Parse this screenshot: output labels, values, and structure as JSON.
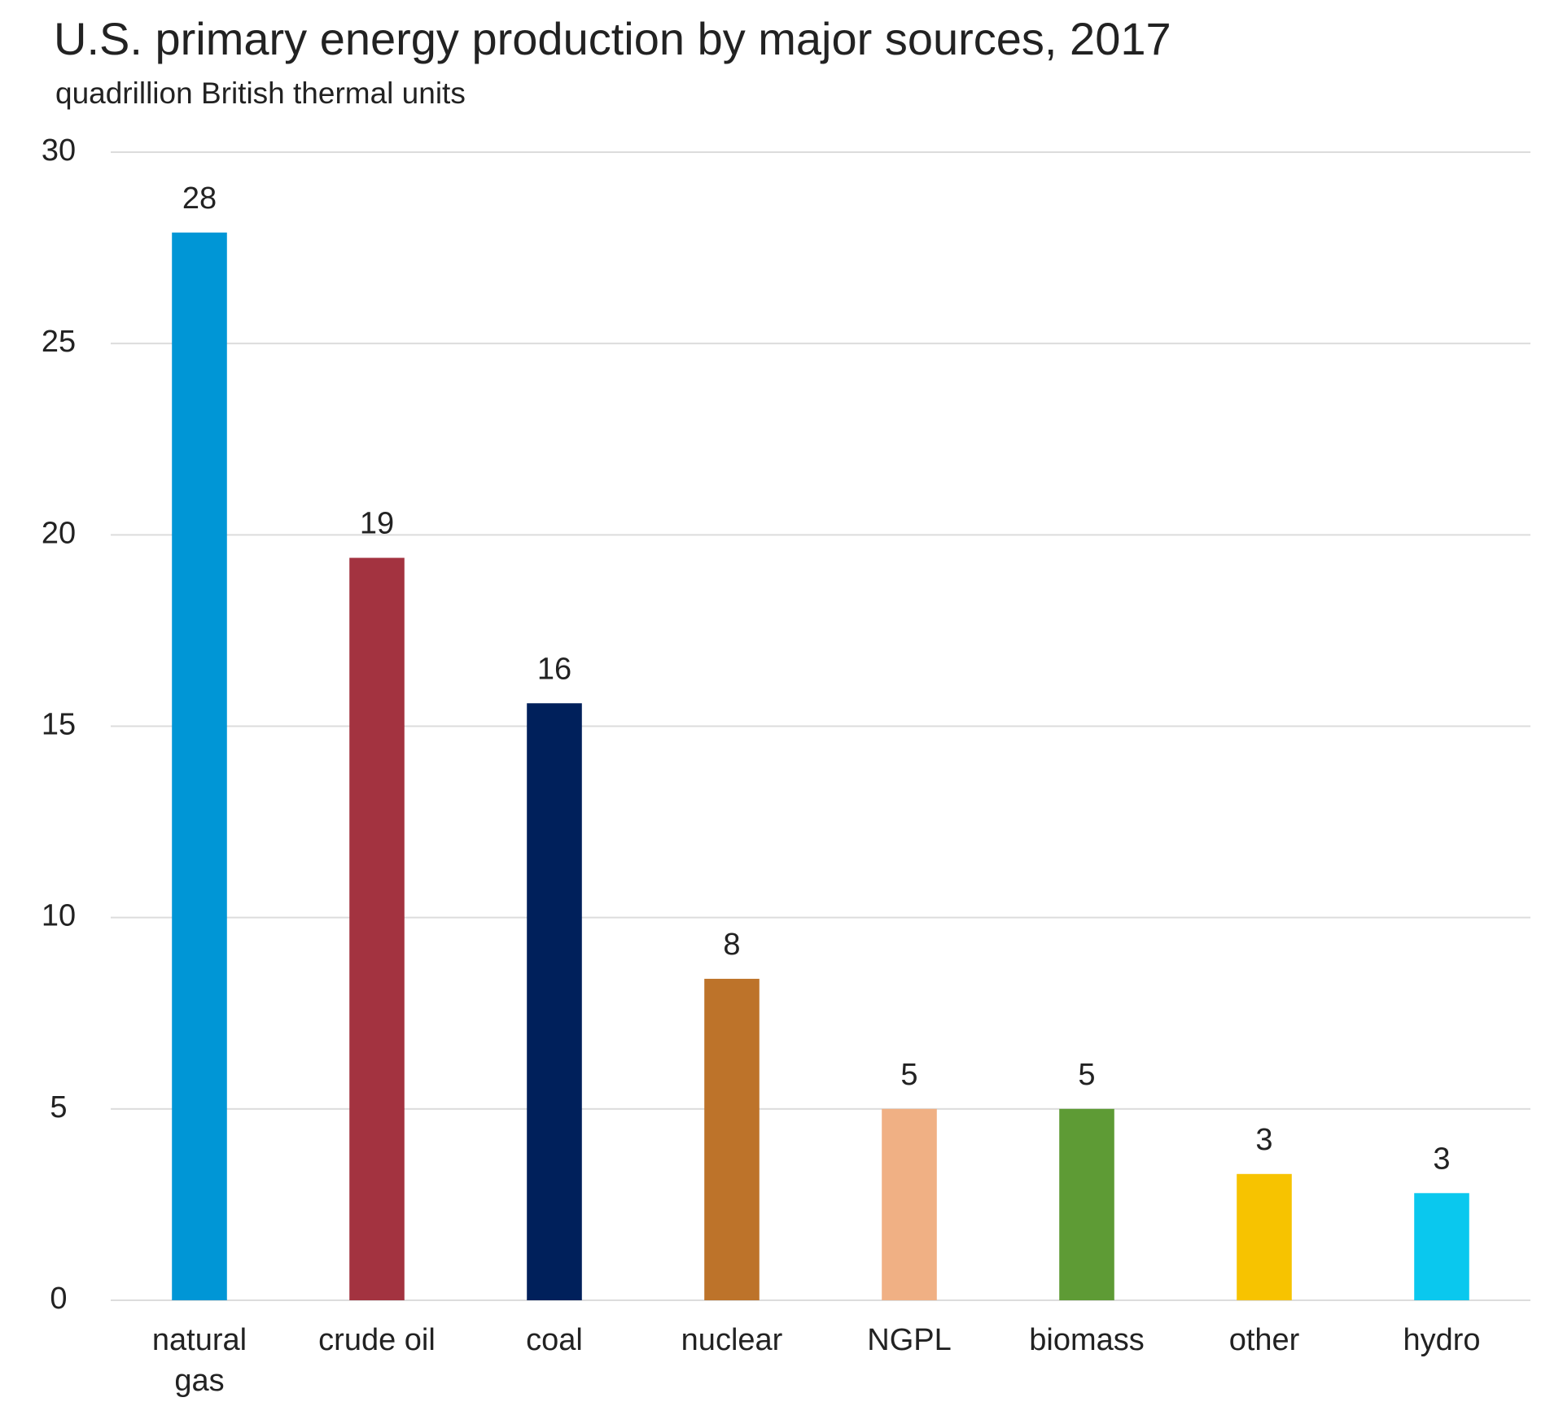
{
  "chart_data": {
    "type": "bar",
    "title": "U.S. primary energy production by major sources, 2017",
    "subtitle": "quadrillion British thermal units",
    "categories": [
      "natural gas",
      "crude oil",
      "coal",
      "nuclear",
      "NGPL",
      "biomass",
      "other",
      "hydro"
    ],
    "values": [
      27.9,
      19.4,
      15.6,
      8.4,
      5.0,
      5.0,
      3.3,
      2.8
    ],
    "value_labels": [
      "28",
      "19",
      "16",
      "8",
      "5",
      "5",
      "3",
      "3"
    ],
    "colors": [
      "#0096d6",
      "#a33340",
      "#00205b",
      "#bd732a",
      "#f0b084",
      "#5e9b35",
      "#f7c300",
      "#0ac8ee"
    ],
    "ylim": [
      0,
      30
    ],
    "yticks": [
      0,
      5,
      10,
      15,
      20,
      25,
      30
    ],
    "grid": true
  }
}
